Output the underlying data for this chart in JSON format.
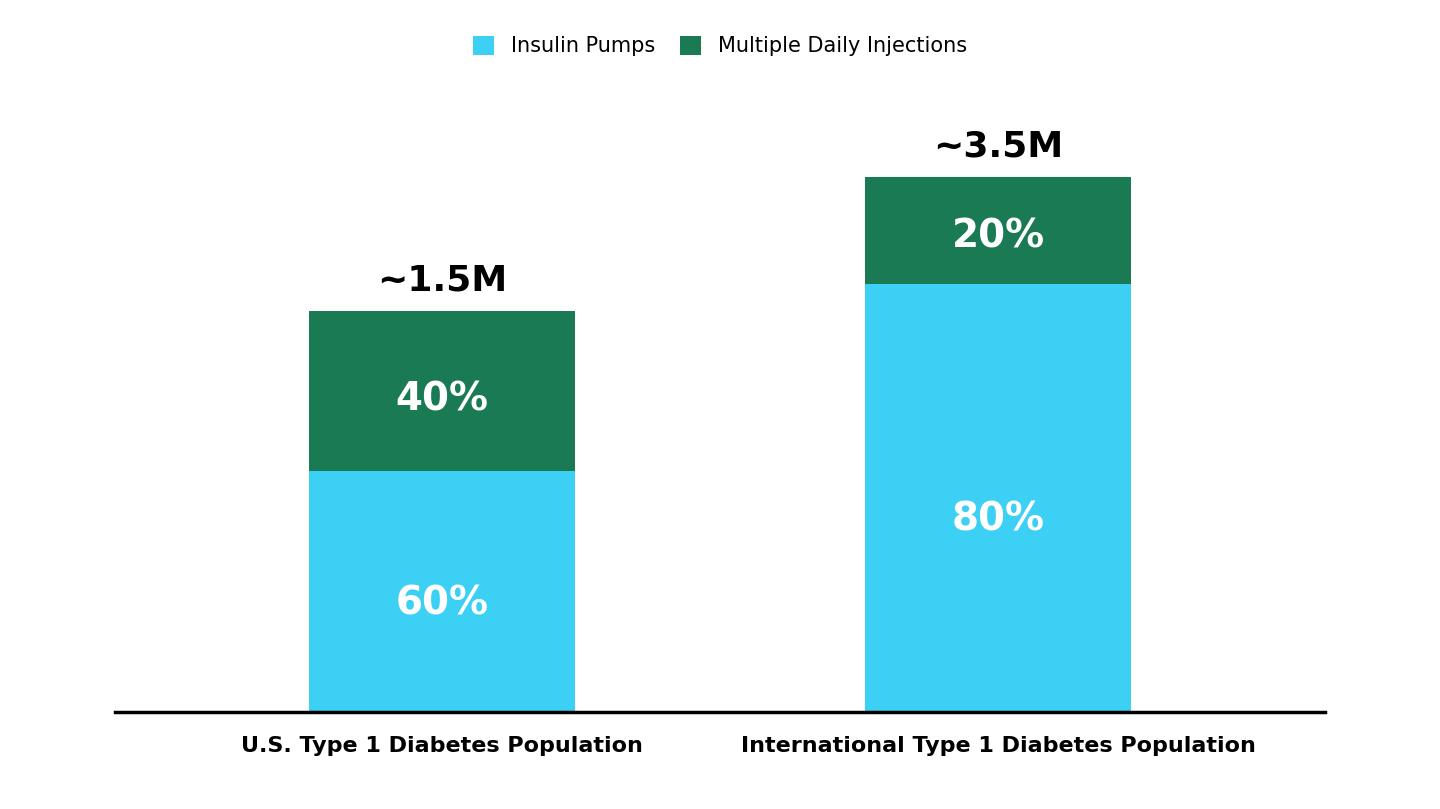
{
  "categories": [
    "U.S. Type 1 Diabetes Population",
    "International Type 1 Diabetes Population"
  ],
  "labels_above": [
    "~1.5M",
    "~3.5M"
  ],
  "us_pumps": 60,
  "us_injections": 40,
  "intl_pumps": 80,
  "intl_injections": 20,
  "us_total": 75,
  "intl_total": 100,
  "insulin_pumps_labels": [
    "60%",
    "80%"
  ],
  "multiple_daily_labels": [
    "40%",
    "20%"
  ],
  "color_pumps": "#3DD0F5",
  "color_injections": "#1A7A54",
  "legend_pumps": "Insulin Pumps",
  "legend_injections": "Multiple Daily Injections",
  "background_color": "#FFFFFF",
  "bar_width": 0.22,
  "ylim": [
    0,
    115
  ],
  "label_fontsize": 28,
  "above_label_fontsize": 26,
  "xlabel_fontsize": 16,
  "legend_fontsize": 15
}
